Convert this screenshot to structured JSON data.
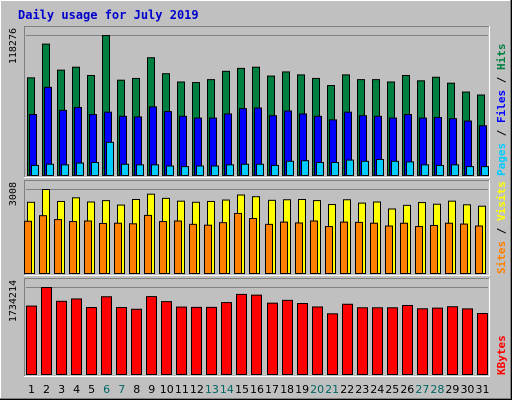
{
  "chart_data": {
    "type": "bar",
    "title": "Daily usage for July 2019",
    "categories": [
      "1",
      "2",
      "3",
      "4",
      "5",
      "6",
      "7",
      "8",
      "9",
      "10",
      "11",
      "12",
      "13",
      "14",
      "15",
      "16",
      "17",
      "18",
      "19",
      "20",
      "21",
      "22",
      "23",
      "24",
      "25",
      "26",
      "27",
      "28",
      "29",
      "30",
      "31"
    ],
    "weekend_days": [
      "6",
      "7",
      "13",
      "14",
      "20",
      "21",
      "27",
      "28"
    ],
    "colors": {
      "hits": "#008040",
      "files": "#0000ff",
      "pages": "#00ccff",
      "visits": "#ffff00",
      "sites": "#ff8000",
      "kbytes": "#ff0000",
      "weekend_tick": "#006666",
      "weekday_tick": "#000000",
      "side_separator": "#000000",
      "title": "#0000cc"
    },
    "panels": [
      {
        "id": "hits_files_pages",
        "ylabel": "118276",
        "ymax": 118276,
        "side_label": [
          "Pages",
          "Files",
          "Hits"
        ],
        "series": [
          {
            "name": "Hits",
            "color": "#008040",
            "values": [
              82500,
              111000,
              89000,
              91500,
              84500,
              118276,
              80500,
              82000,
              99500,
              86000,
              79000,
              78500,
              81000,
              88000,
              90500,
              91500,
              84000,
              87500,
              85000,
              82000,
              76000,
              85000,
              81000,
              81000,
              79000,
              84500,
              80000,
              83000,
              78000,
              70500,
              68000
            ]
          },
          {
            "name": "Files",
            "color": "#0000ff",
            "values": [
              51500,
              74500,
              55000,
              57500,
              51500,
              53500,
              50000,
              49500,
              58000,
              54000,
              50000,
              48500,
              48500,
              52000,
              56500,
              57000,
              50500,
              54500,
              52000,
              50000,
              47000,
              53500,
              50500,
              50000,
              48500,
              51500,
              48500,
              49000,
              48000,
              46000,
              42000
            ]
          },
          {
            "name": "Pages",
            "color": "#00ccff",
            "values": [
              8500,
              9500,
              9000,
              10500,
              11000,
              28000,
              9500,
              9000,
              9000,
              8000,
              7500,
              8000,
              8000,
              9000,
              9500,
              9500,
              8500,
              12000,
              12500,
              11000,
              11000,
              13000,
              12000,
              13500,
              12000,
              11500,
              9000,
              8500,
              9000,
              7500,
              7500
            ]
          }
        ]
      },
      {
        "id": "visits_sites",
        "ylabel": "3008",
        "ymax": 3008,
        "side_label": [
          "Sites",
          "Visits"
        ],
        "series": [
          {
            "name": "Visits",
            "color": "#ffff00",
            "values": [
              2550,
              3008,
              2580,
              2710,
              2560,
              2610,
              2450,
              2650,
              2840,
              2690,
              2590,
              2550,
              2580,
              2630,
              2810,
              2750,
              2620,
              2640,
              2650,
              2610,
              2470,
              2640,
              2520,
              2560,
              2310,
              2440,
              2540,
              2480,
              2590,
              2460,
              2410
            ]
          },
          {
            "name": "Sites",
            "color": "#ff8000",
            "values": [
              1870,
              2070,
              1930,
              1860,
              1880,
              1790,
              1800,
              1780,
              2080,
              1860,
              1880,
              1760,
              1730,
              1820,
              2150,
              1970,
              1760,
              1840,
              1810,
              1880,
              1680,
              1840,
              1830,
              1800,
              1700,
              1800,
              1680,
              1720,
              1800,
              1770,
              1700
            ]
          }
        ]
      },
      {
        "id": "kbytes",
        "ylabel": "1734214",
        "ymax": 1734214,
        "side_label": [
          "KBytes"
        ],
        "series": [
          {
            "name": "KBytes",
            "color": "#ff0000",
            "values": [
              1364000,
              1734214,
              1459000,
              1506000,
              1335000,
              1550000,
              1335000,
              1300000,
              1553000,
              1453000,
              1344000,
              1338000,
              1338000,
              1434000,
              1597000,
              1582000,
              1422000,
              1478000,
              1415000,
              1346000,
              1210000,
              1400000,
              1330000,
              1330000,
              1330000,
              1376000,
              1310000,
              1323000,
              1351000,
              1308000,
              1216000
            ]
          }
        ]
      }
    ]
  }
}
